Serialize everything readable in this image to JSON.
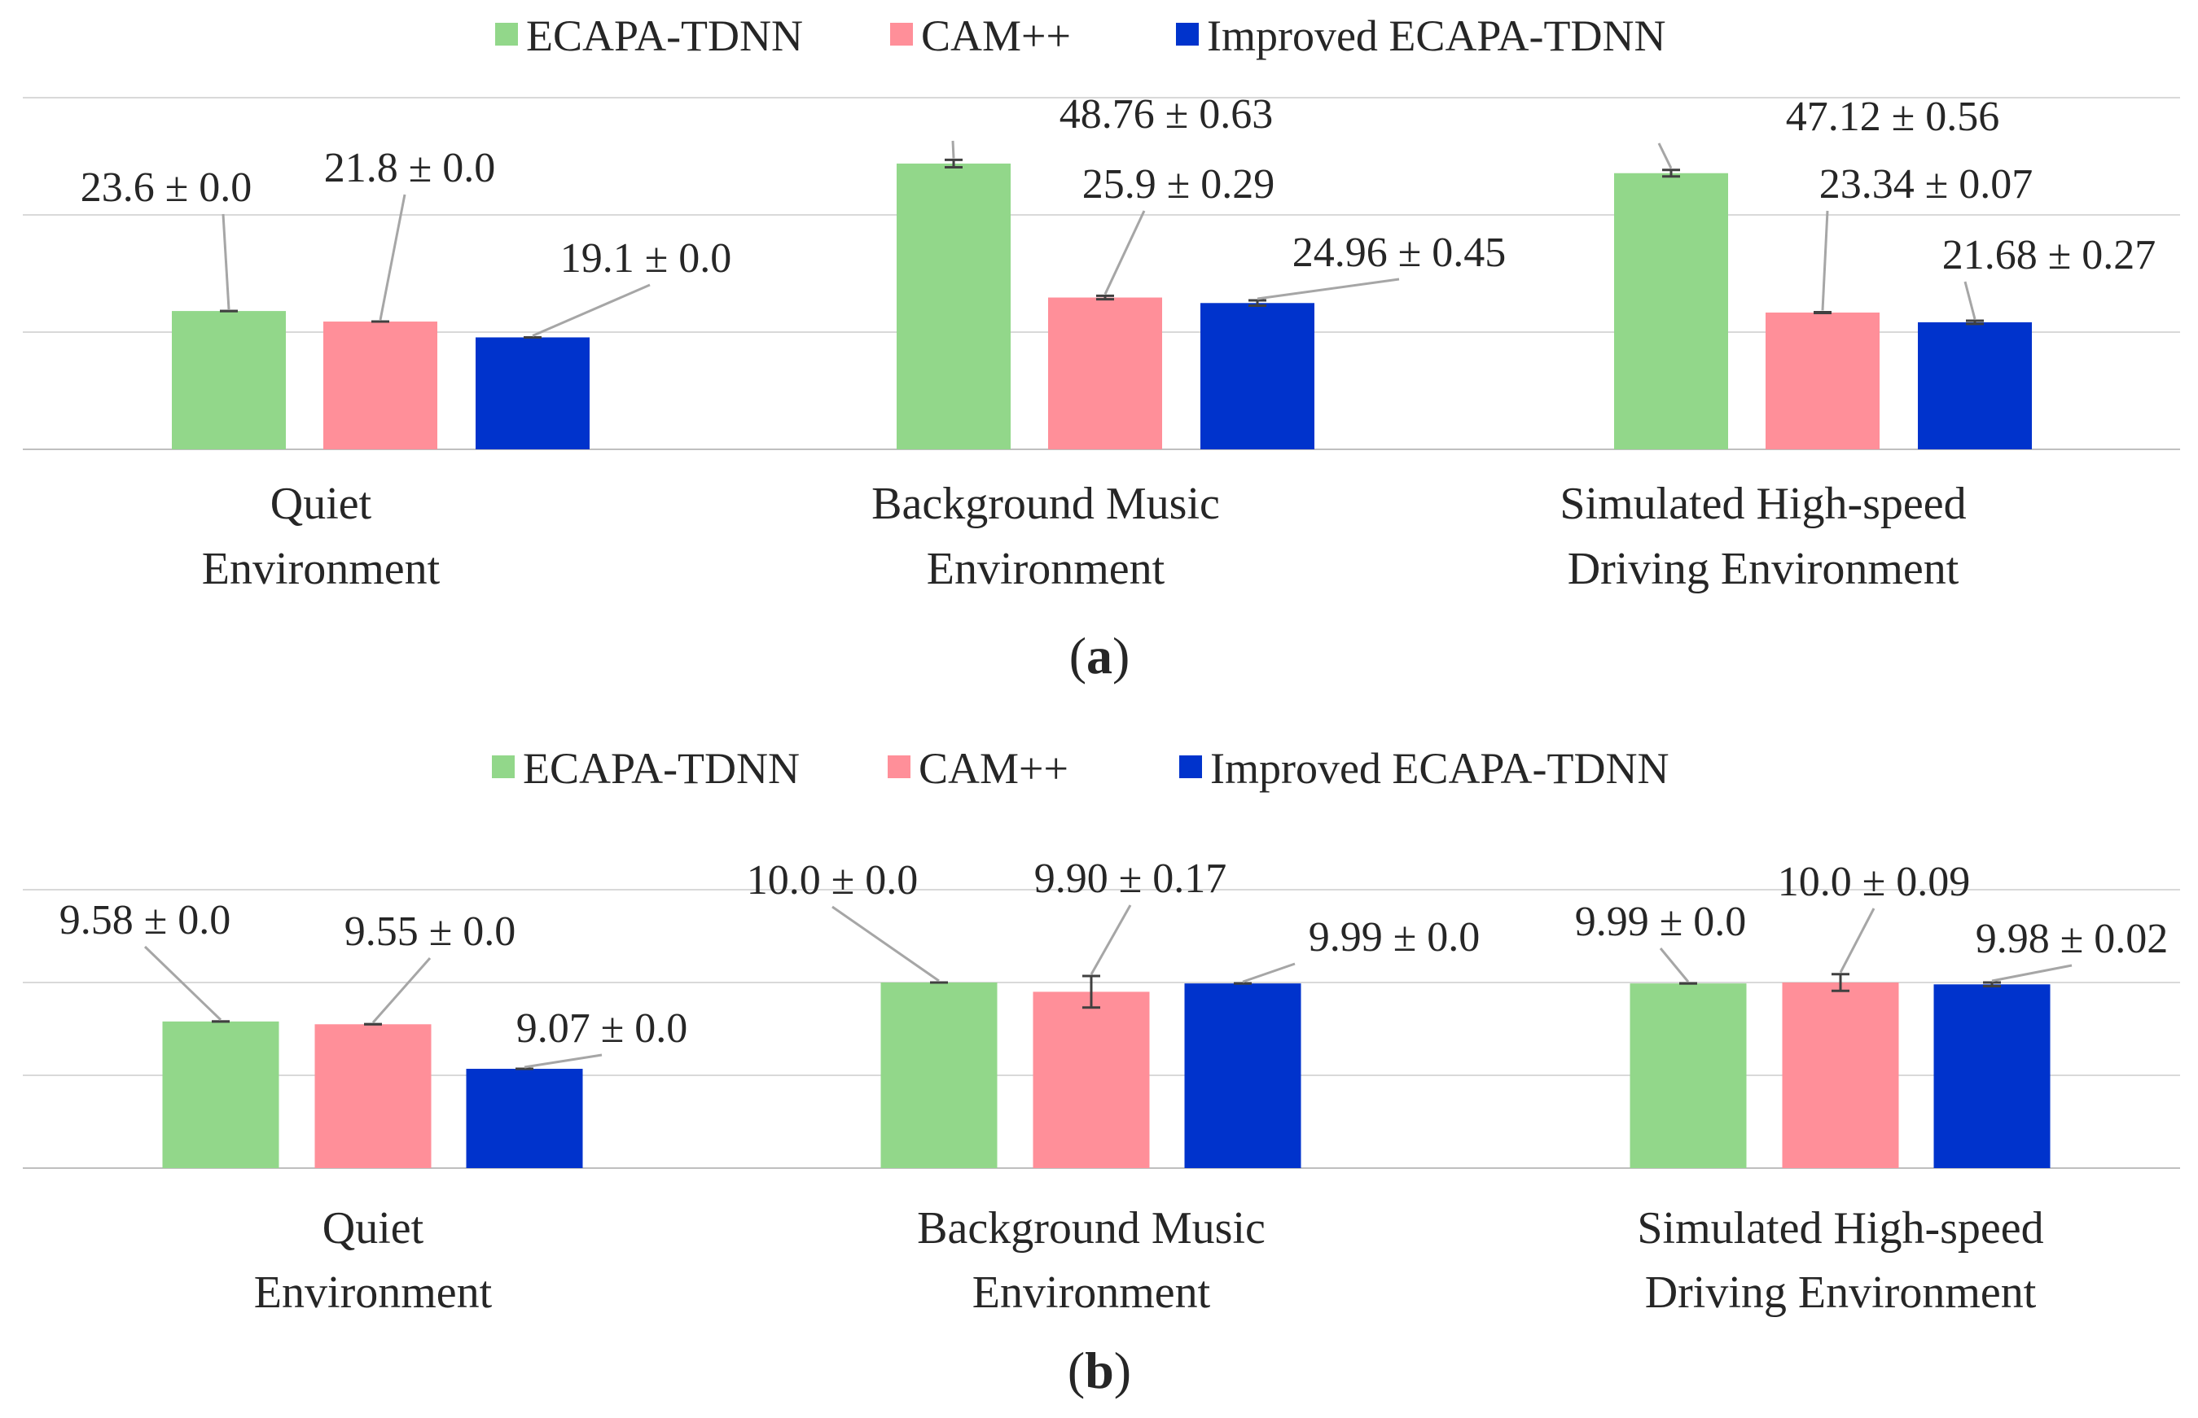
{
  "chart_data": [
    {
      "panel": "a",
      "type": "bar",
      "caption_open": "(",
      "caption_letter": "a",
      "caption_close": ")",
      "categories": [
        [
          "Quiet",
          "Environment"
        ],
        [
          "Background Music",
          "Environment"
        ],
        [
          "Simulated High-speed",
          "Driving Environment"
        ]
      ],
      "series": [
        {
          "name": "ECAPA-TDNN",
          "color": "#92D78A",
          "values": [
            23.6,
            48.76,
            47.12
          ],
          "errors": [
            0.0,
            0.63,
            0.56
          ],
          "labels": [
            "23.6 ± 0.0",
            "48.76 ± 0.63",
            "47.12 ± 0.56"
          ]
        },
        {
          "name": "CAM++",
          "color": "#FF8F99",
          "values": [
            21.8,
            25.9,
            23.34
          ],
          "errors": [
            0.0,
            0.29,
            0.07
          ],
          "labels": [
            "21.8 ± 0.0",
            "25.9 ± 0.29",
            "23.34 ± 0.07"
          ]
        },
        {
          "name": "Improved ECAPA-TDNN",
          "color": "#0033CC",
          "values": [
            19.1,
            24.96,
            21.68
          ],
          "errors": [
            0.0,
            0.45,
            0.27
          ],
          "labels": [
            "19.1 ± 0.0",
            "24.96 ± 0.45",
            "21.68 ± 0.27"
          ]
        }
      ],
      "ylim": [
        0,
        60
      ],
      "gridlines": [
        0,
        20,
        40,
        60
      ],
      "grid": true,
      "legend": "top-center",
      "xlabel": "",
      "ylabel": ""
    },
    {
      "panel": "b",
      "type": "bar",
      "caption_open": "(",
      "caption_letter": "b",
      "caption_close": ")",
      "categories": [
        [
          "Quiet",
          "Environment"
        ],
        [
          "Background Music",
          "Environment"
        ],
        [
          "Simulated High-speed",
          "Driving Environment"
        ]
      ],
      "series": [
        {
          "name": "ECAPA-TDNN",
          "color": "#92D78A",
          "values": [
            9.58,
            10.0,
            9.99
          ],
          "errors": [
            0.0,
            0.0,
            0.0
          ],
          "labels": [
            "9.58 ± 0.0",
            "10.0 ± 0.0",
            "9.99 ± 0.0"
          ]
        },
        {
          "name": "CAM++",
          "color": "#FF8F99",
          "values": [
            9.55,
            9.9,
            10.0
          ],
          "errors": [
            0.0,
            0.17,
            0.09
          ],
          "labels": [
            "9.55 ± 0.0",
            "9.90 ± 0.17",
            "10.0 ± 0.09"
          ]
        },
        {
          "name": "Improved ECAPA-TDNN",
          "color": "#0033CC",
          "values": [
            9.07,
            9.99,
            9.98
          ],
          "errors": [
            0.0,
            0.0,
            0.02
          ],
          "labels": [
            "9.07 ± 0.0",
            "9.99 ± 0.0",
            "9.98 ± 0.02"
          ]
        }
      ],
      "ylim": [
        8,
        11
      ],
      "gridlines": [
        8,
        9,
        10,
        11
      ],
      "grid": true,
      "legend": "top-center",
      "xlabel": "",
      "ylabel": ""
    }
  ]
}
